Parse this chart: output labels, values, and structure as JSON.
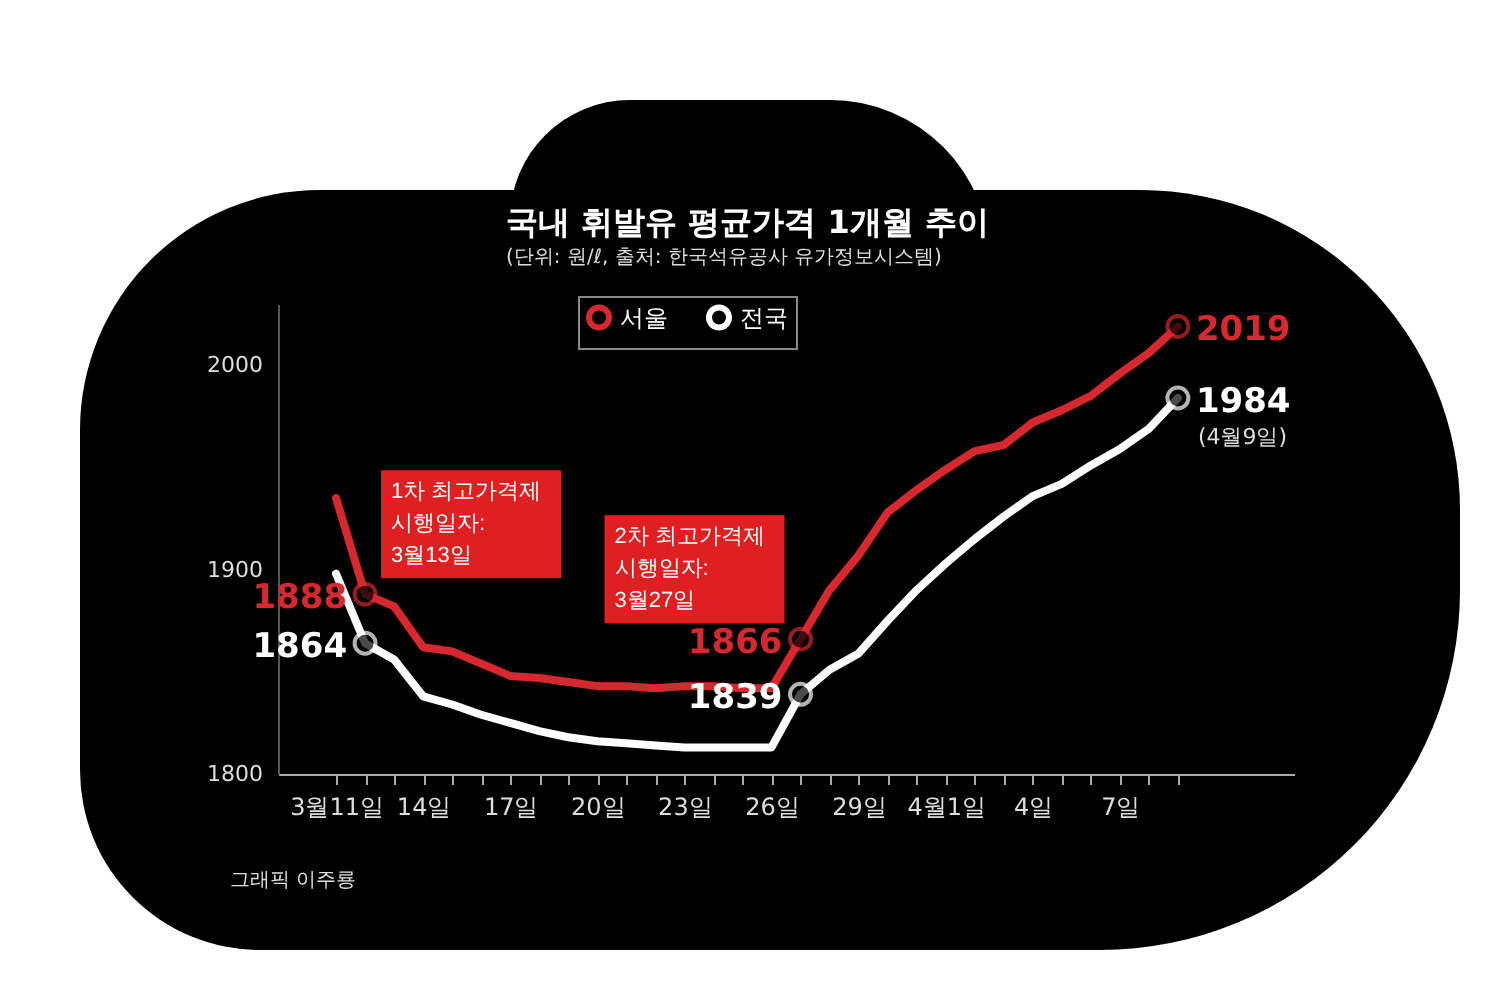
{
  "chart_data": {
    "type": "line",
    "title": "국내 휘발유 평균가격 1개월 추이",
    "subtitle": "(단위: 원/ℓ, 출처: 한국석유공사 유가정보시스템)",
    "x": [
      "--03-11",
      "--03-12",
      "--03-13",
      "--03-14",
      "--03-15",
      "--03-16",
      "--03-17",
      "--03-18",
      "--03-19",
      "--03-20",
      "--03-21",
      "--03-22",
      "--03-23",
      "--03-24",
      "--03-25",
      "--03-26",
      "--03-27",
      "--03-28",
      "--03-29",
      "--03-30",
      "--03-31",
      "--04-01",
      "--04-02",
      "--04-03",
      "--04-04",
      "--04-05",
      "--04-06",
      "--04-07",
      "--04-08",
      "--04-09"
    ],
    "series": [
      {
        "name": "서울",
        "color": "#d7282f",
        "values": [
          1935,
          1888,
          1882,
          1862,
          1860,
          1854,
          1848,
          1847,
          1845,
          1843,
          1843,
          1842,
          1843,
          1843,
          1842,
          1842,
          1866,
          1890,
          1907,
          1928,
          1939,
          1949,
          1958,
          1961,
          1972,
          1978,
          1985,
          1996,
          2006,
          2019
        ],
        "value_labels": [
          null,
          "1888",
          null,
          null,
          null,
          null,
          null,
          null,
          null,
          null,
          null,
          null,
          null,
          null,
          null,
          null,
          "1866",
          null,
          null,
          null,
          null,
          null,
          null,
          null,
          null,
          null,
          null,
          null,
          null,
          "2019"
        ]
      },
      {
        "name": "전국",
        "color": "#ffffff",
        "values": [
          1898,
          1864,
          1856,
          1838,
          1834,
          1829,
          1825,
          1821,
          1818,
          1816,
          1815,
          1814,
          1813,
          1813,
          1813,
          1813,
          1839,
          1851,
          1859,
          1875,
          1890,
          1903,
          1915,
          1926,
          1936,
          1942,
          1951,
          1959,
          1969,
          1984
        ],
        "value_labels": [
          null,
          "1864",
          null,
          null,
          null,
          null,
          null,
          null,
          null,
          null,
          null,
          null,
          null,
          null,
          null,
          null,
          "1839",
          null,
          null,
          null,
          null,
          null,
          null,
          null,
          null,
          null,
          null,
          null,
          null,
          "1984"
        ]
      }
    ],
    "xlim": [
      "--03-09",
      "--04-13"
    ],
    "xticks": [
      {
        "value": "--03-11",
        "label": "3월11일"
      },
      {
        "value": "--03-12",
        "label": null
      },
      {
        "value": "--03-13",
        "label": null
      },
      {
        "value": "--03-14",
        "label": "14일"
      },
      {
        "value": "--03-15",
        "label": null
      },
      {
        "value": "--03-16",
        "label": null
      },
      {
        "value": "--03-17",
        "label": "17일"
      },
      {
        "value": "--03-18",
        "label": null
      },
      {
        "value": "--03-19",
        "label": null
      },
      {
        "value": "--03-20",
        "label": "20일"
      },
      {
        "value": "--03-21",
        "label": null
      },
      {
        "value": "--03-22",
        "label": null
      },
      {
        "value": "--03-23",
        "label": "23일"
      },
      {
        "value": "--03-24",
        "label": null
      },
      {
        "value": "--03-25",
        "label": null
      },
      {
        "value": "--03-26",
        "label": "26일"
      },
      {
        "value": "--03-27",
        "label": null
      },
      {
        "value": "--03-28",
        "label": null
      },
      {
        "value": "--03-29",
        "label": "29일"
      },
      {
        "value": "--03-30",
        "label": null
      },
      {
        "value": "--03-31",
        "label": null
      },
      {
        "value": "--04-01",
        "label": "4월1일"
      },
      {
        "value": "--04-02",
        "label": null
      },
      {
        "value": "--04-03",
        "label": null
      },
      {
        "value": "--04-04",
        "label": "4일"
      },
      {
        "value": "--04-05",
        "label": null
      },
      {
        "value": "--04-06",
        "label": null
      },
      {
        "value": "--04-07",
        "label": "7일"
      },
      {
        "value": "--04-08",
        "label": null
      },
      {
        "value": "--04-09",
        "label": null
      }
    ],
    "ylim": [
      1800,
      2030
    ],
    "yticks": [
      1800,
      1900,
      2000
    ],
    "grid": false,
    "legend": "top",
    "annotations": [
      {
        "text": "1차 최고가격제\n시행일자:\n3월13일",
        "x": "--03-12",
        "y": 1888
      },
      {
        "text": "2차 최고가격제\n시행일자:\n3월27일",
        "x": "--03-27",
        "y": 1866
      },
      {
        "text": "(4월9일)",
        "x": "--04-09",
        "y": 1984
      },
      "그래픽 이주룡"
    ]
  }
}
